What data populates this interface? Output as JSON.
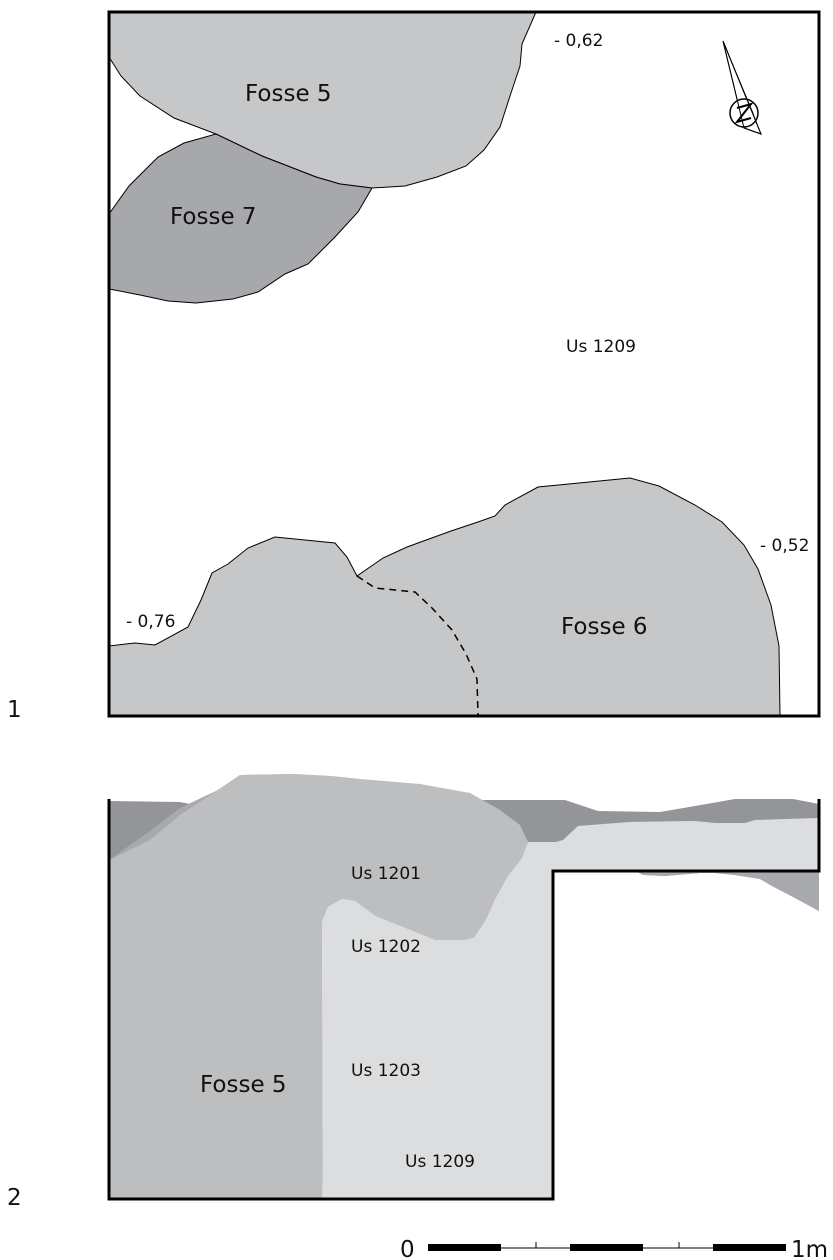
{
  "figure_numbers": {
    "plan": "1",
    "section": "2"
  },
  "plan": {
    "fosse5": "Fosse 5",
    "fosse7": "Fosse 7",
    "fosse6": "Fosse 6",
    "us_1209": "Us 1209",
    "alt_top": "- 0,62",
    "alt_right": "- 0,52",
    "alt_left": "- 0,76",
    "north_arrow": "north-arrow-icon"
  },
  "section": {
    "us_1201": "Us 1201",
    "us_1202": "Us 1202",
    "us_1203": "Us 1203",
    "us_1209": "Us 1209",
    "fosse5": "Fosse 5"
  },
  "scale": {
    "start": "0",
    "end": "1m"
  },
  "colors": {
    "fosse_light": "#c6c7c9",
    "fosse_dark": "#a6a8ab",
    "us1201": "#939598",
    "us1202": "#a7a9ac",
    "us1203": "#bcbec0",
    "us1209": "#dcdddf",
    "outline": "#000000"
  }
}
